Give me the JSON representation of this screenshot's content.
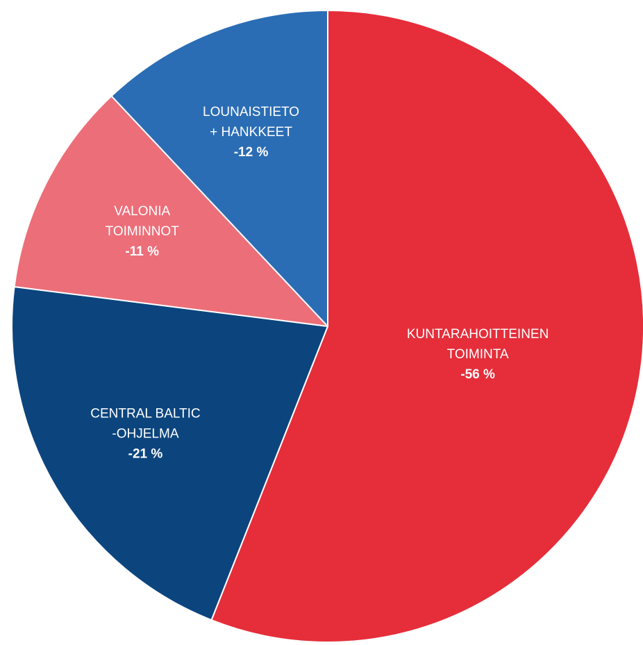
{
  "chart_data": {
    "type": "pie",
    "title": "",
    "start_angle_deg": 0,
    "direction": "clockwise",
    "slices": [
      {
        "label_lines": [
          "KUNTARAHOITTEINEN",
          "TOIMINTA"
        ],
        "value": 56,
        "display": "-56 %",
        "color": "#e52e3a"
      },
      {
        "label_lines": [
          "CENTRAL BALTIC",
          "-OHJELMA"
        ],
        "value": 21,
        "display": "-21 %",
        "color": "#0c457e"
      },
      {
        "label_lines": [
          "VALONIA",
          "TOIMINNOT"
        ],
        "value": 11,
        "display": "-11 %",
        "color": "#ec6e79"
      },
      {
        "label_lines": [
          "LOUNAISTIETO",
          "+ HANKKEET"
        ],
        "value": 12,
        "display": "-12 %",
        "color": "#2b6db4"
      }
    ]
  }
}
